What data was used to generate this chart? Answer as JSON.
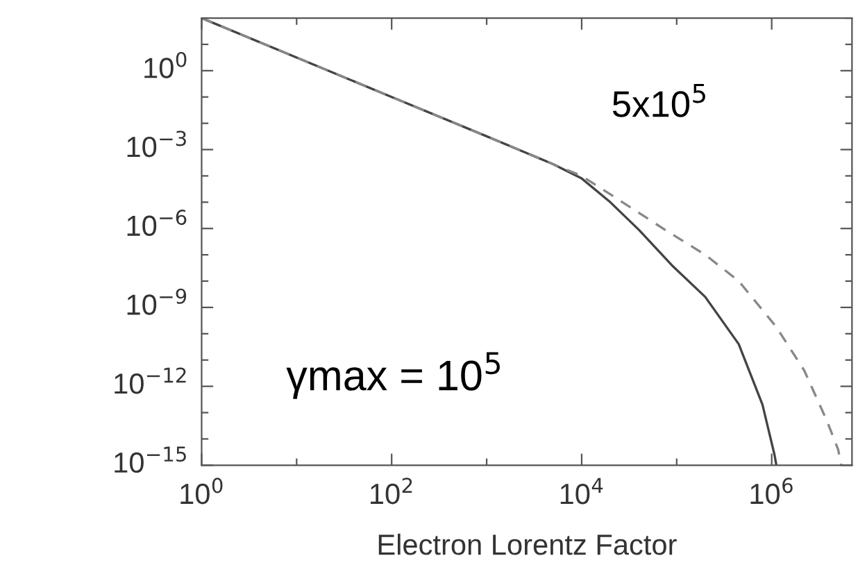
{
  "chart_data": {
    "type": "line",
    "xlabel": "Electron Lorentz Factor",
    "log": "xy",
    "grid": false,
    "legend": false,
    "marker": "none",
    "xlim": [
      1,
      7000000.0
    ],
    "ylim": [
      1e-15,
      100
    ],
    "xticks": [
      {
        "value": 1,
        "label": "10$^{0}$"
      },
      {
        "value": 10,
        "label": null
      },
      {
        "value": 100,
        "label": "10$^{2}$"
      },
      {
        "value": 1000,
        "label": null
      },
      {
        "value": 10000,
        "label": "10$^{4}$"
      },
      {
        "value": 100000,
        "label": null
      },
      {
        "value": 1000000,
        "label": "10$^{6}$"
      }
    ],
    "yticks": [
      {
        "value": 100,
        "label": null
      },
      {
        "value": 10,
        "label": null
      },
      {
        "value": 1,
        "label": "10$^{0}$"
      },
      {
        "value": 0.1,
        "label": null
      },
      {
        "value": 0.01,
        "label": null
      },
      {
        "value": 0.001,
        "label": "10$^{−3}$"
      },
      {
        "value": 0.0001,
        "label": null
      },
      {
        "value": 1e-05,
        "label": null
      },
      {
        "value": 1e-06,
        "label": "10$^{−6}$"
      },
      {
        "value": 1e-07,
        "label": null
      },
      {
        "value": 1e-08,
        "label": null
      },
      {
        "value": 1e-09,
        "label": "10$^{−9}$"
      },
      {
        "value": 1e-10,
        "label": null
      },
      {
        "value": 1e-11,
        "label": null
      },
      {
        "value": 1e-12,
        "label": "10$^{−12}$"
      },
      {
        "value": 1e-13,
        "label": null
      },
      {
        "value": 1e-14,
        "label": null
      },
      {
        "value": 1e-15,
        "label": "10$^{−15}$"
      }
    ],
    "series": [
      {
        "color": "#444444",
        "line_style": "solid",
        "x": [
          1,
          100,
          1000,
          5000,
          10000,
          20000,
          40000,
          89000,
          200000,
          450000,
          800000,
          1070000,
          1120000
        ],
        "values": [
          100,
          0.1,
          0.0032,
          0.00028,
          8e-05,
          1e-05,
          8.9e-07,
          4e-08,
          2.5e-09,
          4e-11,
          2e-13,
          2.5e-15,
          1e-15
        ]
      },
      {
        "color": "#888888",
        "line_style": "dashed",
        "x": [
          1,
          100,
          1000,
          5000,
          10000,
          20000,
          79000,
          200000,
          450000,
          1120000,
          2200000,
          3800000,
          5000000,
          5400000
        ],
        "values": [
          100,
          0.1,
          0.0032,
          0.00028,
          0.0001,
          2e-05,
          8e-07,
          1e-07,
          1e-08,
          1.8e-10,
          4e-12,
          5e-14,
          4e-15,
          1e-15
        ]
      }
    ],
    "annotations": [
      "5x10$^{5}$",
      "γmax = 10$^{5}$"
    ]
  }
}
